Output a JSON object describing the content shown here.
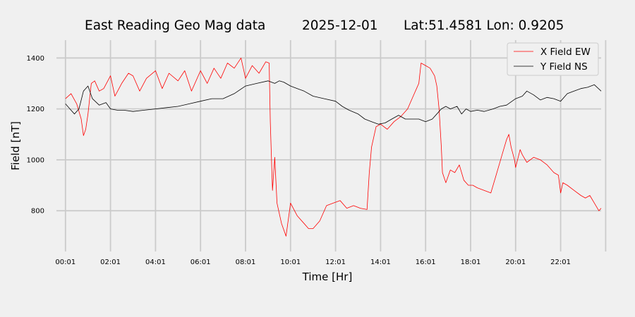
{
  "chart_data": {
    "type": "line",
    "title": {
      "name": "East Reading Geo Mag data",
      "date": "2025-12-01",
      "location": "Lat:51.4581  Lon: 0.9205"
    },
    "xlabel": "Time  [Hr]",
    "ylabel": "Field  [nT]",
    "x_unit": "hours",
    "xlim": [
      -0.4,
      23.8
    ],
    "ylim": [
      640,
      1470
    ],
    "xticks": [
      {
        "value": 0,
        "label": "00:01"
      },
      {
        "value": 2,
        "label": "02:01"
      },
      {
        "value": 4,
        "label": "04:01"
      },
      {
        "value": 6,
        "label": "06:01"
      },
      {
        "value": 8,
        "label": "08:01"
      },
      {
        "value": 10,
        "label": "10:01"
      },
      {
        "value": 12,
        "label": "12:01"
      },
      {
        "value": 14,
        "label": "14:01"
      },
      {
        "value": 16,
        "label": "16:01"
      },
      {
        "value": 18,
        "label": "18:01"
      },
      {
        "value": 20,
        "label": "20:01"
      },
      {
        "value": 22,
        "label": "22:01"
      },
      {
        "value": 24,
        "label": ""
      }
    ],
    "yticks": [
      {
        "value": 800,
        "label": "800"
      },
      {
        "value": 1000,
        "label": "1000"
      },
      {
        "value": 1200,
        "label": "1200"
      },
      {
        "value": 1400,
        "label": "1400"
      }
    ],
    "grid": true,
    "legend_position": "top-right",
    "series": [
      {
        "name": "X Field EW",
        "color": "#ff0000",
        "x": [
          0,
          0.25,
          0.5,
          0.7,
          0.8,
          0.9,
          1.0,
          1.15,
          1.3,
          1.5,
          1.7,
          2.0,
          2.2,
          2.5,
          2.8,
          3.0,
          3.3,
          3.6,
          4.0,
          4.3,
          4.6,
          5.0,
          5.3,
          5.6,
          6.0,
          6.3,
          6.6,
          6.9,
          7.2,
          7.5,
          7.8,
          8.0,
          8.3,
          8.6,
          8.9,
          9.05,
          9.1,
          9.2,
          9.3,
          9.4,
          9.5,
          9.6,
          9.8,
          10.0,
          10.3,
          10.6,
          10.8,
          11.0,
          11.3,
          11.6,
          11.9,
          12.2,
          12.5,
          12.8,
          13.1,
          13.4,
          13.5,
          13.6,
          13.8,
          14.0,
          14.3,
          14.6,
          14.9,
          15.2,
          15.5,
          15.7,
          15.8,
          16.0,
          16.2,
          16.4,
          16.5,
          16.6,
          16.7,
          16.75,
          16.9,
          17.1,
          17.3,
          17.5,
          17.7,
          17.9,
          18.1,
          18.3,
          18.6,
          18.9,
          19.1,
          19.4,
          19.6,
          19.7,
          19.8,
          19.95,
          20.0,
          20.2,
          20.3,
          20.5,
          20.8,
          21.1,
          21.4,
          21.7,
          21.9,
          22.0,
          22.1,
          22.3,
          22.6,
          22.9,
          23.1,
          23.3,
          23.5,
          23.7,
          23.8
        ],
        "values": [
          1240,
          1260,
          1220,
          1160,
          1095,
          1120,
          1180,
          1300,
          1310,
          1270,
          1280,
          1330,
          1250,
          1300,
          1340,
          1330,
          1270,
          1320,
          1350,
          1280,
          1340,
          1310,
          1350,
          1270,
          1350,
          1300,
          1360,
          1320,
          1380,
          1360,
          1400,
          1320,
          1370,
          1340,
          1385,
          1380,
          1150,
          880,
          1010,
          830,
          790,
          750,
          700,
          830,
          780,
          750,
          730,
          730,
          760,
          820,
          830,
          840,
          810,
          820,
          810,
          805,
          950,
          1050,
          1130,
          1140,
          1120,
          1150,
          1170,
          1200,
          1260,
          1300,
          1380,
          1370,
          1360,
          1330,
          1290,
          1200,
          1050,
          950,
          910,
          960,
          950,
          980,
          920,
          900,
          900,
          890,
          880,
          870,
          930,
          1020,
          1080,
          1100,
          1050,
          1000,
          970,
          1040,
          1020,
          990,
          1010,
          1000,
          980,
          950,
          940,
          870,
          910,
          900,
          880,
          860,
          850,
          860,
          830,
          800,
          810
        ]
      },
      {
        "name": "Y Field NS",
        "color": "#000000",
        "x": [
          0,
          0.2,
          0.4,
          0.6,
          0.8,
          1.0,
          1.2,
          1.5,
          1.8,
          2.0,
          2.3,
          2.6,
          3.0,
          3.5,
          4.0,
          4.5,
          5.0,
          5.5,
          6.0,
          6.5,
          7.0,
          7.5,
          8.0,
          8.5,
          9.0,
          9.3,
          9.5,
          9.7,
          10.0,
          10.3,
          10.6,
          11.0,
          11.5,
          12.0,
          12.3,
          12.6,
          13.0,
          13.3,
          13.6,
          13.9,
          14.2,
          14.5,
          14.8,
          15.1,
          15.4,
          15.7,
          16.0,
          16.3,
          16.5,
          16.7,
          16.9,
          17.1,
          17.4,
          17.6,
          17.8,
          18.0,
          18.3,
          18.6,
          19.0,
          19.3,
          19.6,
          20.0,
          20.3,
          20.5,
          20.8,
          21.1,
          21.4,
          21.7,
          22.0,
          22.3,
          22.6,
          22.9,
          23.2,
          23.5,
          23.8
        ],
        "values": [
          1220,
          1200,
          1180,
          1200,
          1270,
          1290,
          1240,
          1215,
          1225,
          1200,
          1195,
          1195,
          1190,
          1195,
          1200,
          1205,
          1210,
          1220,
          1230,
          1240,
          1240,
          1260,
          1290,
          1300,
          1310,
          1300,
          1310,
          1305,
          1290,
          1280,
          1270,
          1250,
          1240,
          1230,
          1210,
          1195,
          1180,
          1160,
          1150,
          1140,
          1145,
          1160,
          1175,
          1160,
          1160,
          1160,
          1150,
          1160,
          1180,
          1200,
          1210,
          1200,
          1210,
          1180,
          1200,
          1190,
          1195,
          1190,
          1200,
          1210,
          1215,
          1240,
          1250,
          1270,
          1255,
          1235,
          1245,
          1240,
          1230,
          1260,
          1270,
          1280,
          1285,
          1295,
          1270
        ]
      }
    ]
  }
}
